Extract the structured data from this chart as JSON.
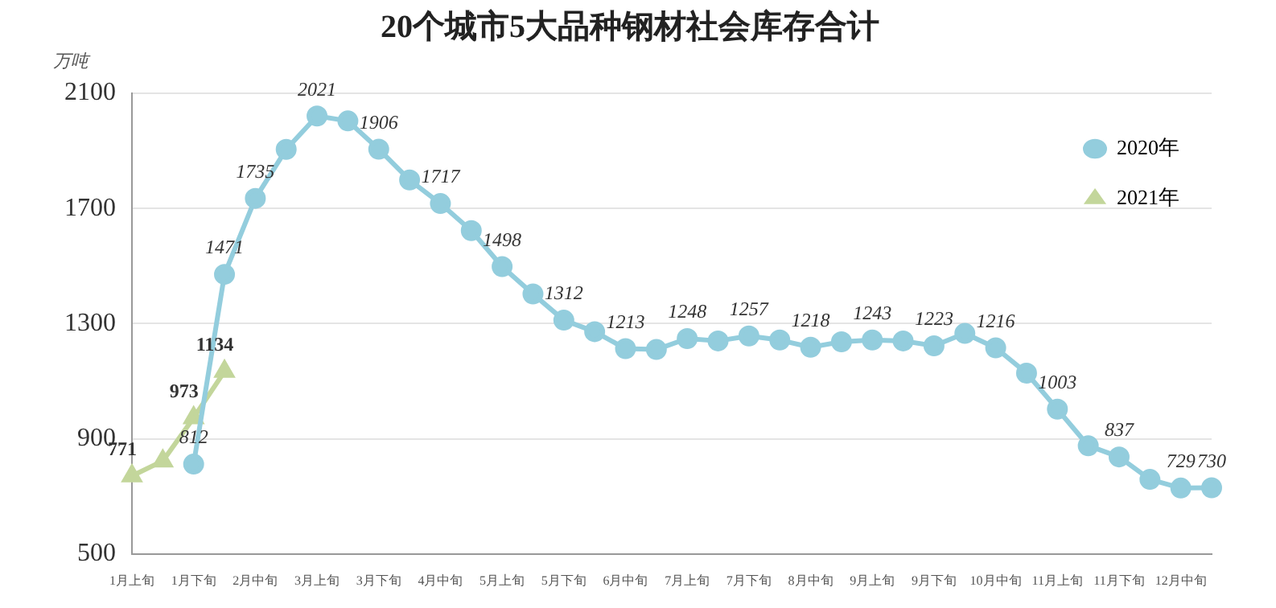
{
  "chart_data": {
    "type": "line",
    "title": "20个城市5大品种钢材社会库存合计",
    "ylabel": "万吨",
    "categories": [
      "1月上旬",
      null,
      "1月下旬",
      null,
      "2月中旬",
      null,
      "3月上旬",
      null,
      "3月下旬",
      null,
      "4月中旬",
      null,
      "5月上旬",
      null,
      "5月下旬",
      null,
      "6月中旬",
      null,
      "7月上旬",
      null,
      "7月下旬",
      null,
      "8月中旬",
      null,
      "9月上旬",
      null,
      "9月下旬",
      null,
      "10月中旬",
      null,
      "11月上旬",
      null,
      "11月下旬",
      null,
      "12月中旬",
      null
    ],
    "series": [
      {
        "name": "2020年",
        "color": "#93cddd",
        "marker": "circle",
        "values": [
          null,
          null,
          812,
          1471,
          1735,
          1905,
          2021,
          2004,
          1906,
          1799,
          1717,
          1623,
          1498,
          1403,
          1312,
          1272,
          1213,
          1210,
          1248,
          1240,
          1257,
          1243,
          1218,
          1237,
          1243,
          1240,
          1223,
          1266,
          1216,
          1128,
          1003,
          876,
          837,
          759,
          729,
          730
        ],
        "value_labels": [
          null,
          null,
          "812",
          "1471",
          "1735",
          null,
          "2021",
          null,
          "1906",
          null,
          "1717",
          null,
          "1498",
          null,
          "1312",
          null,
          "1213",
          null,
          "1248",
          null,
          "1257",
          null,
          "1218",
          null,
          "1243",
          null,
          "1223",
          null,
          "1216",
          null,
          "1003",
          null,
          "837",
          null,
          "729",
          "730"
        ]
      },
      {
        "name": "2021年",
        "color": "#c3d69b",
        "marker": "triangle",
        "values": [
          771,
          823,
          973,
          1134,
          null,
          null,
          null,
          null,
          null,
          null,
          null,
          null,
          null,
          null,
          null,
          null,
          null,
          null,
          null,
          null,
          null,
          null,
          null,
          null,
          null,
          null,
          null,
          null,
          null,
          null,
          null,
          null,
          null,
          null,
          null,
          null
        ],
        "value_labels": [
          "771",
          null,
          "973",
          "1134",
          null,
          null,
          null,
          null,
          null,
          null,
          null,
          null,
          null,
          null,
          null,
          null,
          null,
          null,
          null,
          null,
          null,
          null,
          null,
          null,
          null,
          null,
          null,
          null,
          null,
          null,
          null,
          null,
          null,
          null,
          null,
          null
        ]
      }
    ],
    "ylim": [
      500,
      2100
    ],
    "yticks": [
      500,
      900,
      1300,
      1700,
      2100
    ],
    "grid": "y",
    "legend": "top right",
    "line_style": "solid"
  }
}
